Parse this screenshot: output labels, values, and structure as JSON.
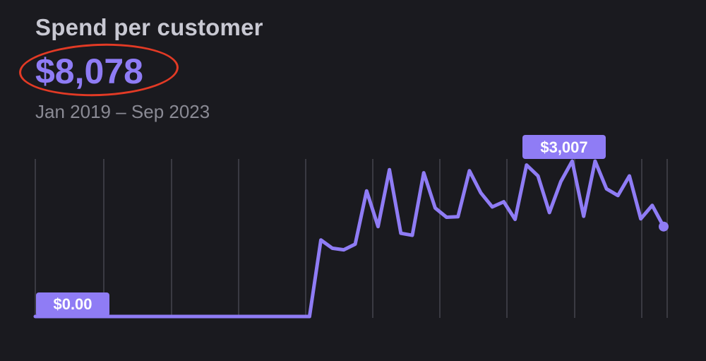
{
  "card": {
    "title": "Spend per customer",
    "total": "$8,078",
    "date_range": "Jan 2019 – Sep 2023"
  },
  "colors": {
    "background": "#1a1a1f",
    "accent": "#8f7cf5",
    "gridline": "#3a3a42",
    "annotation": "#e23a25"
  },
  "chart_data": {
    "type": "line",
    "ylim": [
      0,
      3007
    ],
    "grid": "vertical",
    "series": [
      {
        "values": [
          0,
          0,
          0,
          0,
          0,
          0,
          0,
          0,
          0,
          0,
          0,
          0,
          0,
          0,
          0,
          0,
          0,
          0,
          0,
          0,
          0,
          0,
          0,
          0,
          0,
          1480,
          1320,
          1290,
          1400,
          2430,
          1740,
          2840,
          1610,
          1570,
          2780,
          2100,
          1920,
          1930,
          2820,
          2390,
          2120,
          2220,
          1880,
          2930,
          2720,
          2010,
          2610,
          3007,
          1940,
          3007,
          2470,
          2340,
          2720,
          1890,
          2150,
          1740
        ]
      }
    ],
    "labels": {
      "min": "$0.00",
      "max": "$3,007"
    }
  }
}
